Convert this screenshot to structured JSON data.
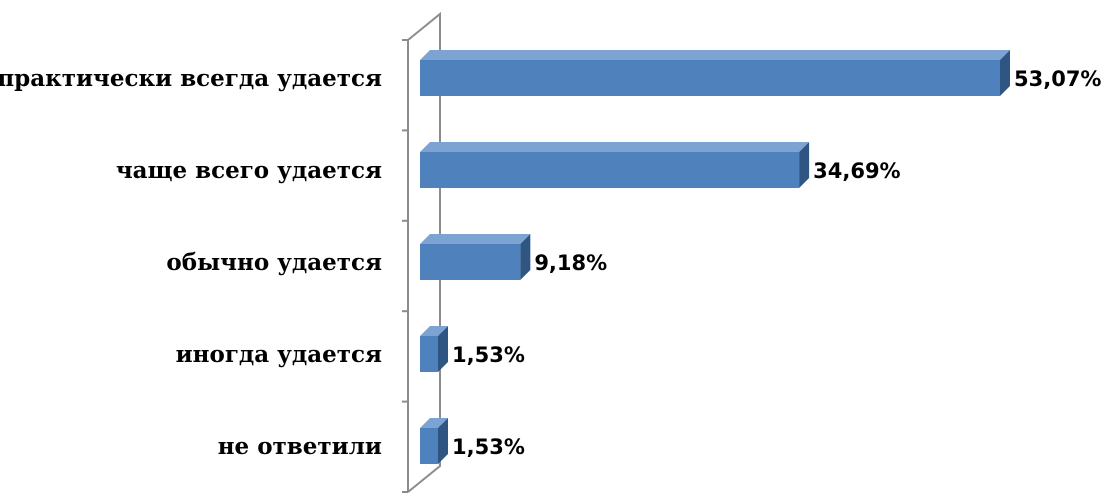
{
  "chart_data": {
    "type": "bar",
    "orientation": "horizontal",
    "categories": [
      "практически всегда удается",
      "чаще всего удается",
      "обычно удается",
      "иногда удается",
      "не ответили"
    ],
    "values": [
      53.07,
      34.69,
      9.18,
      1.53,
      1.53
    ],
    "value_labels": [
      "53,07%",
      "34,69%",
      "9,18%",
      "1,53%",
      "1,53%"
    ],
    "xlim": [
      0,
      53.07
    ],
    "grid": false,
    "legend": "none",
    "style": "3d"
  },
  "colors": {
    "bar_front": "#4f81bd",
    "bar_top": "#7da3d3",
    "bar_side": "#2f5683",
    "axis": "#8c8c8c"
  }
}
